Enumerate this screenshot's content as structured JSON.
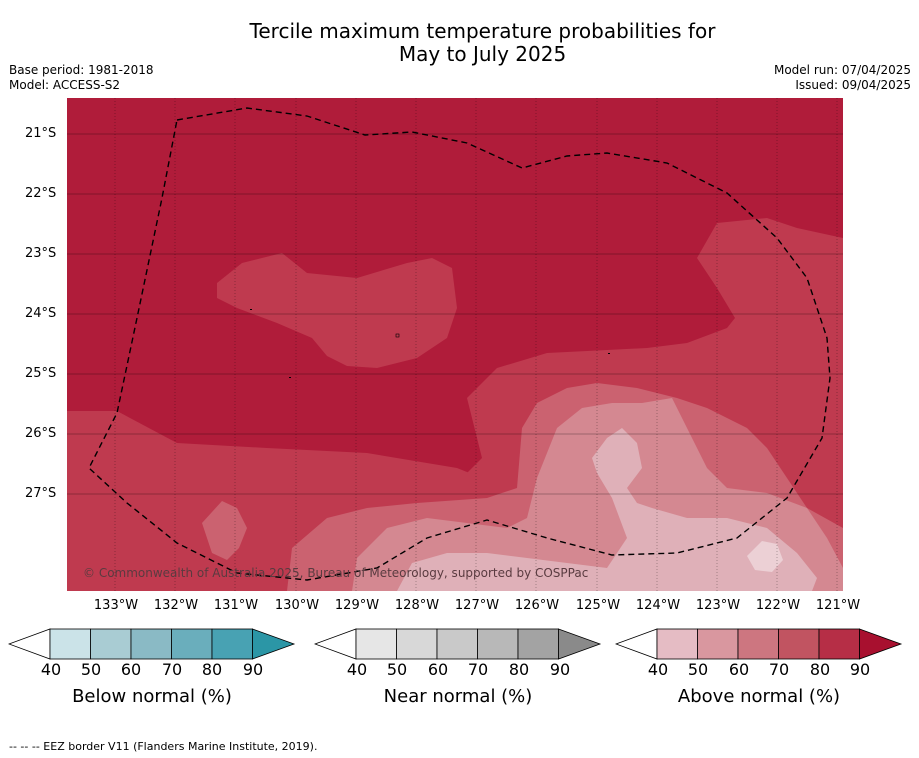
{
  "title_line1": "Tercile maximum temperature probabilities for",
  "title_line2": "May to July 2025",
  "base_period": "Base period: 1981-2018",
  "model": "Model: ACCESS-S2",
  "model_run": "Model run: 07/04/2025",
  "issued": "Issued: 09/04/2025",
  "lat_labels": [
    "21°S",
    "22°S",
    "23°S",
    "24°S",
    "25°S",
    "26°S",
    "27°S"
  ],
  "lon_labels": [
    "133°W",
    "132°W",
    "131°W",
    "130°W",
    "129°W",
    "128°W",
    "127°W",
    "126°W",
    "125°W",
    "124°W",
    "123°W",
    "122°W",
    "121°W"
  ],
  "copyright": "© Commonwealth of Australia 2025, Bureau of Meteorology, supported by COSPPac",
  "colorbars": [
    {
      "title": "Below normal (%)",
      "ticks": [
        "40",
        "50",
        "60",
        "70",
        "80",
        "90"
      ],
      "colors": [
        "#ffffff",
        "#cbe3e8",
        "#a9ccd3",
        "#8abac5",
        "#6aaebc",
        "#48a2b3",
        "#2b96a6"
      ]
    },
    {
      "title": "Near normal (%)",
      "ticks": [
        "40",
        "50",
        "60",
        "70",
        "80",
        "90"
      ],
      "colors": [
        "#ffffff",
        "#e6e6e6",
        "#d8d8d8",
        "#c9c9c9",
        "#b8b8b8",
        "#a3a3a3",
        "#8a8a8a"
      ]
    },
    {
      "title": "Above normal (%)",
      "ticks": [
        "40",
        "50",
        "60",
        "70",
        "80",
        "90"
      ],
      "colors": [
        "#ffffff",
        "#e5bcc4",
        "#d9979f",
        "#cd7680",
        "#c15461",
        "#b62e46",
        "#a8102f"
      ]
    }
  ],
  "eez_note": "-- -- -- EEZ border V11 (Flanders Marine Institute, 2019).",
  "map_colors": {
    "c90": "#b01c3a",
    "c80": "#bf3a4f",
    "c70": "#cb6270",
    "c60": "#d48891",
    "c50": "#dfb0b8"
  }
}
